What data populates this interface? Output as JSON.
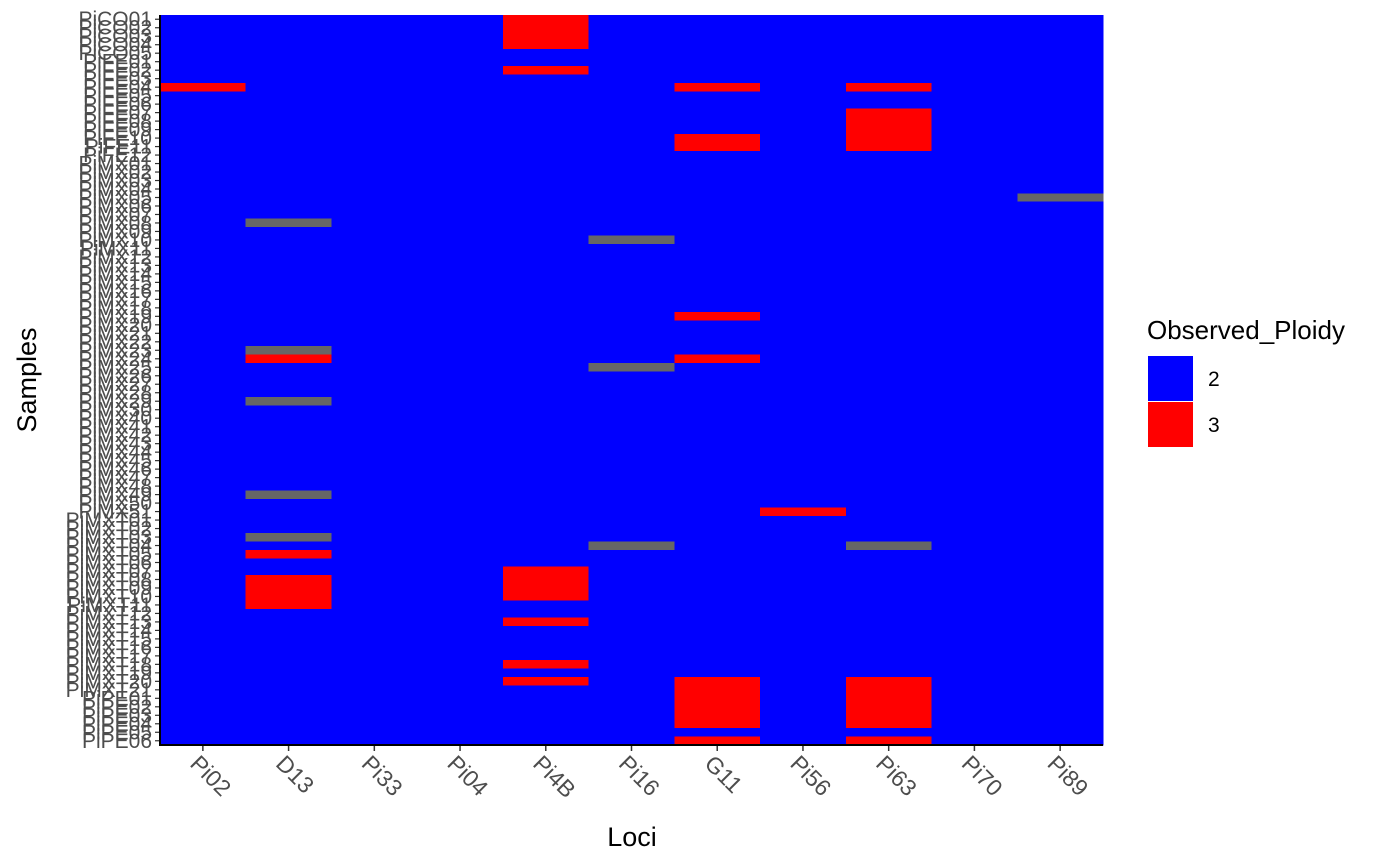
{
  "chart_data": {
    "type": "heatmap",
    "title": "",
    "xlabel": "Loci",
    "ylabel": "Samples",
    "x_categories": [
      "Pi02",
      "D13",
      "Pi33",
      "Pi04",
      "Pi4B",
      "Pi16",
      "G11",
      "Pi56",
      "Pi63",
      "Pi70",
      "Pi89"
    ],
    "y_labels_top_to_bottom": [
      "PiCO01",
      "PiCO02",
      "PiCO03",
      "PiCO04",
      "PiCO05",
      "PiFE01",
      "PiFE02",
      "PiFE03",
      "PiFE04",
      "PiFE05",
      "PiFE06",
      "PiFE07",
      "PiFE08",
      "PiFE09",
      "PiFE10",
      "PiFE11",
      "PiFE12",
      "PiMX01",
      "PiMX02",
      "PiMX03",
      "PiMX04",
      "PiMX05",
      "PiMX06",
      "PiMX07",
      "PiMX08",
      "PiMX09",
      "PiMX10",
      "PiMX11",
      "PiMX12",
      "PiMX13",
      "PiMX14",
      "PiMX15",
      "PiMX16",
      "PiMX17",
      "PiMX18",
      "PiMX19",
      "PiMX20",
      "PiMX21",
      "PiMX22",
      "PiMX23",
      "PiMX24",
      "PiMX25",
      "PiMX26",
      "PiMX27",
      "PiMX28",
      "PiMX29",
      "PiMX30",
      "PiMX40",
      "PiMX41",
      "PiMX42",
      "PiMX43",
      "PiMX44",
      "PiMX45",
      "PiMX46",
      "PiMX47",
      "PiMX48",
      "PiMX49",
      "PiMX50",
      "PiMX51",
      "PiMXT01",
      "PiMXT02",
      "PiMXT03",
      "PiMXT04",
      "PiMXT05",
      "PiMXT06",
      "PiMXT07",
      "PiMXT08",
      "PiMXT09",
      "PiMXT10",
      "PiMXT11",
      "PiMXT12",
      "PiMXT13",
      "PiMXT14",
      "PiMXT15",
      "PiMXT16",
      "PiMXT17",
      "PiMXT18",
      "PiMXT19",
      "PiMXT20",
      "PiMXT21",
      "PiPE01",
      "PiPE02",
      "PiPE03",
      "PiPE04",
      "PiPE05",
      "PiPE06"
    ],
    "fill_legend": {
      "title": "Observed_Ploidy",
      "entries": [
        {
          "label": "2",
          "color": "#0000ff"
        },
        {
          "label": "3",
          "color": "#ff0000"
        }
      ]
    },
    "na_color": "#666666",
    "default_value": 2,
    "triploid_rows_by_locus": {
      "Pi02": [
        8
      ],
      "D13": [
        40,
        63,
        66,
        67,
        68,
        69
      ],
      "Pi4B": [
        0,
        1,
        2,
        3,
        6,
        65,
        66,
        67,
        68,
        71,
        76,
        78
      ],
      "G11": [
        8,
        14,
        15,
        35,
        40,
        78,
        79,
        80,
        81,
        82,
        83,
        85
      ],
      "Pi56": [
        58
      ],
      "Pi63": [
        8,
        11,
        12,
        13,
        14,
        15,
        78,
        79,
        80,
        81,
        82,
        83,
        85
      ]
    },
    "missing_rows_by_locus": {
      "D13": [
        24,
        39,
        45,
        56,
        61
      ],
      "Pi16": [
        26,
        41,
        62
      ],
      "Pi63": [
        62
      ],
      "Pi89": [
        21
      ]
    },
    "grid": false,
    "legend_position": "right"
  }
}
